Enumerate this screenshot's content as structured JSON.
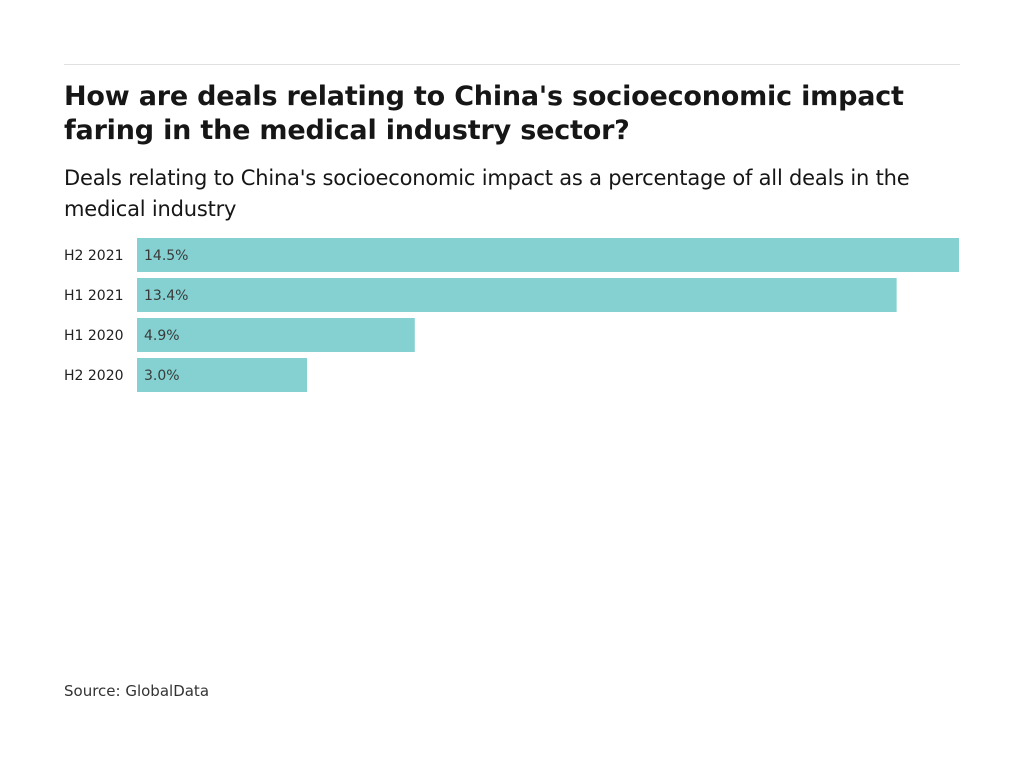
{
  "chart_data": {
    "type": "bar",
    "orientation": "horizontal",
    "title": "How are deals relating to China's socioeconomic impact faring in the medical industry sector?",
    "subtitle": "Deals relating to China's socioeconomic impact as a percentage of all deals in the medical industry",
    "categories": [
      "H2 2021",
      "H1 2021",
      "H1 2020",
      "H2 2020"
    ],
    "values": [
      14.5,
      13.4,
      4.9,
      3.0
    ],
    "data_labels": [
      "14.5%",
      "13.4%",
      "4.9%",
      "3.0%"
    ],
    "xlabel": "",
    "ylabel": "",
    "xlim": [
      0,
      14.5
    ],
    "grid": false,
    "legend": "none",
    "bar_color": "#85d1d1",
    "source": "Source: GlobalData"
  }
}
